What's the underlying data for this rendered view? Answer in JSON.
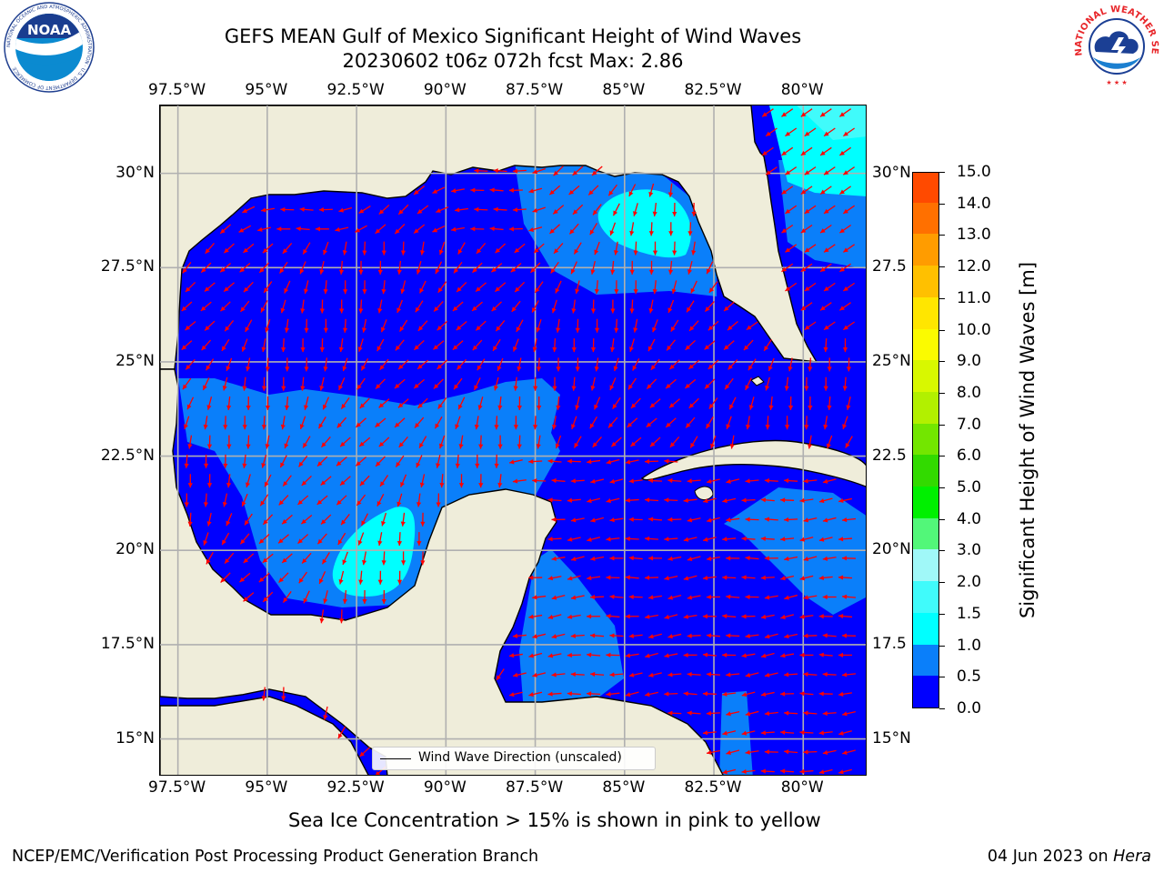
{
  "title": {
    "line1": "GEFS MEAN Gulf of Mexico Significant Height of Wind Waves",
    "line2": "20230602 t06z 072h fcst   Max: 2.86"
  },
  "logos": {
    "noaa_text": "NOAA",
    "noaa_ring": "NATIONAL OCEANIC AND ATMOSPHERIC ADMINISTRATION · U.S. DEPARTMENT OF COMMERCE",
    "nws_ring": "NATIONAL WEATHER SERVICE"
  },
  "map": {
    "lon_range": [
      -98.0,
      -78.2
    ],
    "lat_range": [
      14.0,
      31.8
    ],
    "lon_labels": [
      "97.5°W",
      "95°W",
      "92.5°W",
      "90°W",
      "87.5°W",
      "85°W",
      "82.5°W",
      "80°W"
    ],
    "lon_values": [
      -97.5,
      -95,
      -92.5,
      -90,
      -87.5,
      -85,
      -82.5,
      -80
    ],
    "lat_left_labels": [
      "30°N",
      "27.5°N",
      "25°N",
      "22.5°N",
      "20°N",
      "17.5°N",
      "15°N"
    ],
    "lat_right_labels": [
      "30°N",
      "27.5",
      "25°N",
      "22.5",
      "20°N",
      "17.5",
      "15°N"
    ],
    "lat_values": [
      30,
      27.5,
      25,
      22.5,
      20,
      17.5,
      15
    ],
    "land_color": "#efedda",
    "grid_color": "#b0b0b0",
    "arrow_color": "#ff0000",
    "legend_label": "Wind Wave Direction (unscaled)"
  },
  "colorbar": {
    "labels": [
      "15.0",
      "14.0",
      "13.0",
      "12.0",
      "11.0",
      "10.0",
      "9.0",
      "8.0",
      "7.0",
      "6.0",
      "5.0",
      "4.0",
      "3.0",
      "2.0",
      "1.5",
      "1.0",
      "0.5",
      "0.0"
    ],
    "colors": [
      "#0000ff",
      "#0a7ffa",
      "#00ffff",
      "#40fbfb",
      "#a0f8f8",
      "#52f779",
      "#00f000",
      "#32da00",
      "#73e600",
      "#b2f000",
      "#d8f800",
      "#fbfb00",
      "#ffe600",
      "#ffc000",
      "#ff9c00",
      "#ff7000",
      "#ff4a00",
      "#ff1800",
      "#ff0000"
    ],
    "title": "Significant Height of Wind Waves [m]"
  },
  "footnote": "Sea Ice Concentration > 15% is shown in pink to yellow",
  "credit_left": "NCEP/EMC/Verification Post Processing Product Generation Branch",
  "credit_right": {
    "date": "04 Jun 2023",
    "on": " on ",
    "host": "Hera"
  }
}
